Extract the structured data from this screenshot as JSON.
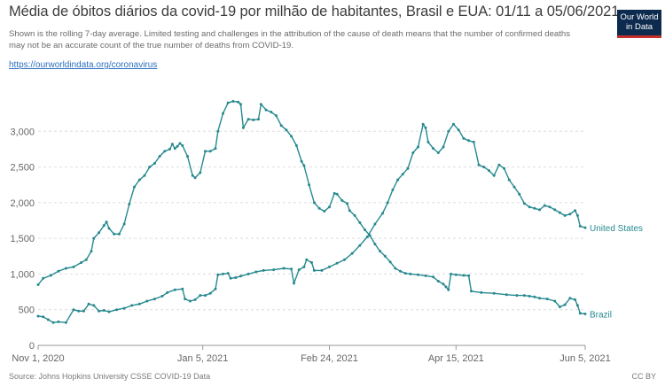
{
  "header": {
    "title": "Média de óbitos diários da covid-19 por milhão de habitantes, Brasil e EUA: 01/11 a 05/06/2021",
    "subtitle": "Shown is the rolling 7-day average. Limited testing and challenges in the attribution of the cause of death means that the number of confirmed deaths may not be an accurate count of the true number of deaths from COVID-19.",
    "link": "https://ourworldindata.org/coronavirus"
  },
  "logo": {
    "line1": "Our World",
    "line2": "in Data"
  },
  "footer": {
    "source": "Source: Johns Hopkins University CSSE COVID-19 Data",
    "license": "CC BY"
  },
  "colors": {
    "brazil": "#26898f",
    "united_states": "#26898f",
    "grid": "#dddddd",
    "axis": "#999999"
  },
  "chart_data": {
    "type": "line",
    "title": "Média de óbitos diários da covid-19 por milhão de habitantes, Brasil e EUA: 01/11 a 05/06/2021",
    "xlabel": "",
    "ylabel": "",
    "x_range": [
      "2020-11-01",
      "2021-06-05"
    ],
    "ylim": [
      0,
      3500
    ],
    "y_ticks": [
      0,
      500,
      1000,
      1500,
      2000,
      2500,
      3000
    ],
    "y_tick_labels": [
      "0",
      "500",
      "1,000",
      "1,500",
      "2,000",
      "2,500",
      "3,000"
    ],
    "x_ticks": [
      "2020-11-01",
      "2021-01-05",
      "2021-02-24",
      "2021-04-15",
      "2021-06-05"
    ],
    "x_tick_labels": [
      "Nov 1, 2020",
      "Jan 5, 2021",
      "Feb 24, 2021",
      "Apr 15, 2021",
      "Jun 5, 2021"
    ],
    "grid": true,
    "legend": "end-of-line labels",
    "series": [
      {
        "name": "Brazil",
        "points": [
          [
            "2020-11-01",
            850
          ],
          [
            "2020-11-03",
            940
          ],
          [
            "2020-11-06",
            980
          ],
          [
            "2020-11-09",
            1040
          ],
          [
            "2020-11-12",
            1080
          ],
          [
            "2020-11-15",
            1100
          ],
          [
            "2020-11-18",
            1160
          ],
          [
            "2020-11-20",
            1200
          ],
          [
            "2020-11-22",
            1320
          ],
          [
            "2020-11-23",
            1500
          ],
          [
            "2020-11-25",
            1580
          ],
          [
            "2020-11-27",
            1680
          ],
          [
            "2020-11-28",
            1730
          ],
          [
            "2020-11-29",
            1640
          ],
          [
            "2020-12-01",
            1560
          ],
          [
            "2020-12-03",
            1560
          ],
          [
            "2020-12-05",
            1700
          ],
          [
            "2020-12-07",
            1980
          ],
          [
            "2020-12-09",
            2220
          ],
          [
            "2020-12-11",
            2320
          ],
          [
            "2020-12-13",
            2380
          ],
          [
            "2020-12-15",
            2500
          ],
          [
            "2020-12-17",
            2550
          ],
          [
            "2020-12-19",
            2650
          ],
          [
            "2020-12-21",
            2720
          ],
          [
            "2020-12-23",
            2750
          ],
          [
            "2020-12-24",
            2820
          ],
          [
            "2020-12-25",
            2760
          ],
          [
            "2020-12-26",
            2790
          ],
          [
            "2020-12-27",
            2830
          ],
          [
            "2020-12-28",
            2800
          ],
          [
            "2020-12-30",
            2650
          ],
          [
            "2021-01-01",
            2380
          ],
          [
            "2021-01-02",
            2350
          ],
          [
            "2021-01-04",
            2420
          ],
          [
            "2021-01-06",
            2720
          ],
          [
            "2021-01-08",
            2720
          ],
          [
            "2021-01-10",
            2760
          ],
          [
            "2021-01-11",
            3000
          ],
          [
            "2021-01-13",
            3250
          ],
          [
            "2021-01-15",
            3400
          ],
          [
            "2021-01-17",
            3420
          ],
          [
            "2021-01-19",
            3410
          ],
          [
            "2021-01-20",
            3380
          ],
          [
            "2021-01-21",
            3050
          ],
          [
            "2021-01-23",
            3170
          ],
          [
            "2021-01-25",
            3160
          ],
          [
            "2021-01-27",
            3170
          ],
          [
            "2021-01-28",
            3380
          ],
          [
            "2021-01-30",
            3300
          ],
          [
            "2021-02-01",
            3270
          ],
          [
            "2021-02-03",
            3220
          ],
          [
            "2021-02-05",
            3080
          ],
          [
            "2021-02-07",
            3020
          ],
          [
            "2021-02-09",
            2930
          ],
          [
            "2021-02-11",
            2800
          ],
          [
            "2021-02-13",
            2580
          ],
          [
            "2021-02-14",
            2520
          ],
          [
            "2021-02-16",
            2250
          ],
          [
            "2021-02-18",
            2000
          ],
          [
            "2021-02-20",
            1920
          ],
          [
            "2021-02-22",
            1880
          ],
          [
            "2021-02-24",
            1940
          ],
          [
            "2021-02-26",
            2130
          ],
          [
            "2021-02-27",
            2120
          ],
          [
            "2021-03-01",
            2030
          ],
          [
            "2021-03-03",
            1990
          ],
          [
            "2021-03-04",
            1890
          ],
          [
            "2021-03-06",
            1820
          ],
          [
            "2021-03-08",
            1720
          ],
          [
            "2021-03-10",
            1620
          ],
          [
            "2021-03-12",
            1540
          ],
          [
            "2021-03-14",
            1420
          ],
          [
            "2021-03-16",
            1320
          ],
          [
            "2021-03-18",
            1250
          ],
          [
            "2021-03-20",
            1170
          ],
          [
            "2021-03-22",
            1080
          ],
          [
            "2021-03-24",
            1040
          ],
          [
            "2021-03-26",
            1010
          ],
          [
            "2021-03-28",
            1000
          ],
          [
            "2021-03-31",
            990
          ],
          [
            "2021-04-03",
            975
          ],
          [
            "2021-04-06",
            960
          ],
          [
            "2021-04-08",
            900
          ],
          [
            "2021-04-10",
            860
          ],
          [
            "2021-04-11",
            820
          ],
          [
            "2021-04-12",
            780
          ],
          [
            "2021-04-13",
            1000
          ],
          [
            "2021-04-15",
            990
          ],
          [
            "2021-04-18",
            980
          ],
          [
            "2021-04-20",
            975
          ],
          [
            "2021-04-21",
            760
          ],
          [
            "2021-04-25",
            740
          ],
          [
            "2021-04-30",
            730
          ],
          [
            "2021-05-05",
            710
          ],
          [
            "2021-05-09",
            700
          ],
          [
            "2021-05-12",
            700
          ],
          [
            "2021-05-14",
            690
          ],
          [
            "2021-05-16",
            680
          ],
          [
            "2021-05-18",
            660
          ],
          [
            "2021-05-21",
            650
          ],
          [
            "2021-05-24",
            620
          ],
          [
            "2021-05-26",
            540
          ],
          [
            "2021-05-28",
            570
          ],
          [
            "2021-05-30",
            660
          ],
          [
            "2021-06-01",
            640
          ],
          [
            "2021-06-02",
            560
          ],
          [
            "2021-06-03",
            450
          ],
          [
            "2021-06-05",
            440
          ]
        ]
      },
      {
        "name": "United States",
        "points": [
          [
            "2020-11-01",
            410
          ],
          [
            "2020-11-03",
            400
          ],
          [
            "2020-11-05",
            360
          ],
          [
            "2020-11-07",
            320
          ],
          [
            "2020-11-09",
            330
          ],
          [
            "2020-11-12",
            320
          ],
          [
            "2020-11-15",
            500
          ],
          [
            "2020-11-17",
            480
          ],
          [
            "2020-11-19",
            480
          ],
          [
            "2020-11-21",
            580
          ],
          [
            "2020-11-23",
            560
          ],
          [
            "2020-11-25",
            480
          ],
          [
            "2020-11-27",
            490
          ],
          [
            "2020-11-29",
            470
          ],
          [
            "2020-12-02",
            500
          ],
          [
            "2020-12-05",
            520
          ],
          [
            "2020-12-08",
            560
          ],
          [
            "2020-12-11",
            580
          ],
          [
            "2020-12-14",
            620
          ],
          [
            "2020-12-17",
            650
          ],
          [
            "2020-12-20",
            690
          ],
          [
            "2020-12-22",
            740
          ],
          [
            "2020-12-25",
            780
          ],
          [
            "2020-12-28",
            790
          ],
          [
            "2020-12-29",
            650
          ],
          [
            "2020-12-31",
            620
          ],
          [
            "2021-01-02",
            640
          ],
          [
            "2021-01-04",
            700
          ],
          [
            "2021-01-06",
            700
          ],
          [
            "2021-01-08",
            730
          ],
          [
            "2021-01-10",
            790
          ],
          [
            "2021-01-11",
            990
          ],
          [
            "2021-01-13",
            1000
          ],
          [
            "2021-01-15",
            1010
          ],
          [
            "2021-01-16",
            940
          ],
          [
            "2021-01-18",
            950
          ],
          [
            "2021-01-20",
            970
          ],
          [
            "2021-01-23",
            1000
          ],
          [
            "2021-01-26",
            1030
          ],
          [
            "2021-01-29",
            1050
          ],
          [
            "2021-02-02",
            1060
          ],
          [
            "2021-02-06",
            1080
          ],
          [
            "2021-02-09",
            1070
          ],
          [
            "2021-02-10",
            870
          ],
          [
            "2021-02-12",
            1060
          ],
          [
            "2021-02-14",
            1100
          ],
          [
            "2021-02-15",
            1200
          ],
          [
            "2021-02-17",
            1160
          ],
          [
            "2021-02-18",
            1050
          ],
          [
            "2021-02-21",
            1050
          ],
          [
            "2021-02-24",
            1100
          ],
          [
            "2021-02-27",
            1150
          ],
          [
            "2021-03-02",
            1200
          ],
          [
            "2021-03-05",
            1290
          ],
          [
            "2021-03-08",
            1400
          ],
          [
            "2021-03-11",
            1520
          ],
          [
            "2021-03-14",
            1700
          ],
          [
            "2021-03-17",
            1850
          ],
          [
            "2021-03-19",
            2000
          ],
          [
            "2021-03-21",
            2180
          ],
          [
            "2021-03-23",
            2320
          ],
          [
            "2021-03-25",
            2400
          ],
          [
            "2021-03-27",
            2480
          ],
          [
            "2021-03-29",
            2700
          ],
          [
            "2021-03-31",
            2780
          ],
          [
            "2021-04-02",
            3100
          ],
          [
            "2021-04-03",
            3050
          ],
          [
            "2021-04-04",
            2850
          ],
          [
            "2021-04-06",
            2760
          ],
          [
            "2021-04-08",
            2700
          ],
          [
            "2021-04-10",
            2780
          ],
          [
            "2021-04-12",
            3000
          ],
          [
            "2021-04-14",
            3100
          ],
          [
            "2021-04-16",
            3020
          ],
          [
            "2021-04-18",
            2900
          ],
          [
            "2021-04-20",
            2870
          ],
          [
            "2021-04-22",
            2850
          ],
          [
            "2021-04-24",
            2530
          ],
          [
            "2021-04-26",
            2500
          ],
          [
            "2021-04-28",
            2450
          ],
          [
            "2021-04-30",
            2380
          ],
          [
            "2021-05-02",
            2530
          ],
          [
            "2021-05-04",
            2480
          ],
          [
            "2021-05-06",
            2320
          ],
          [
            "2021-05-08",
            2220
          ],
          [
            "2021-05-10",
            2120
          ],
          [
            "2021-05-12",
            1990
          ],
          [
            "2021-05-14",
            1940
          ],
          [
            "2021-05-16",
            1920
          ],
          [
            "2021-05-18",
            1900
          ],
          [
            "2021-05-20",
            1960
          ],
          [
            "2021-05-22",
            1940
          ],
          [
            "2021-05-24",
            1900
          ],
          [
            "2021-05-26",
            1860
          ],
          [
            "2021-05-28",
            1820
          ],
          [
            "2021-05-30",
            1840
          ],
          [
            "2021-06-01",
            1890
          ],
          [
            "2021-06-02",
            1820
          ],
          [
            "2021-06-03",
            1670
          ],
          [
            "2021-06-05",
            1650
          ]
        ]
      }
    ]
  }
}
